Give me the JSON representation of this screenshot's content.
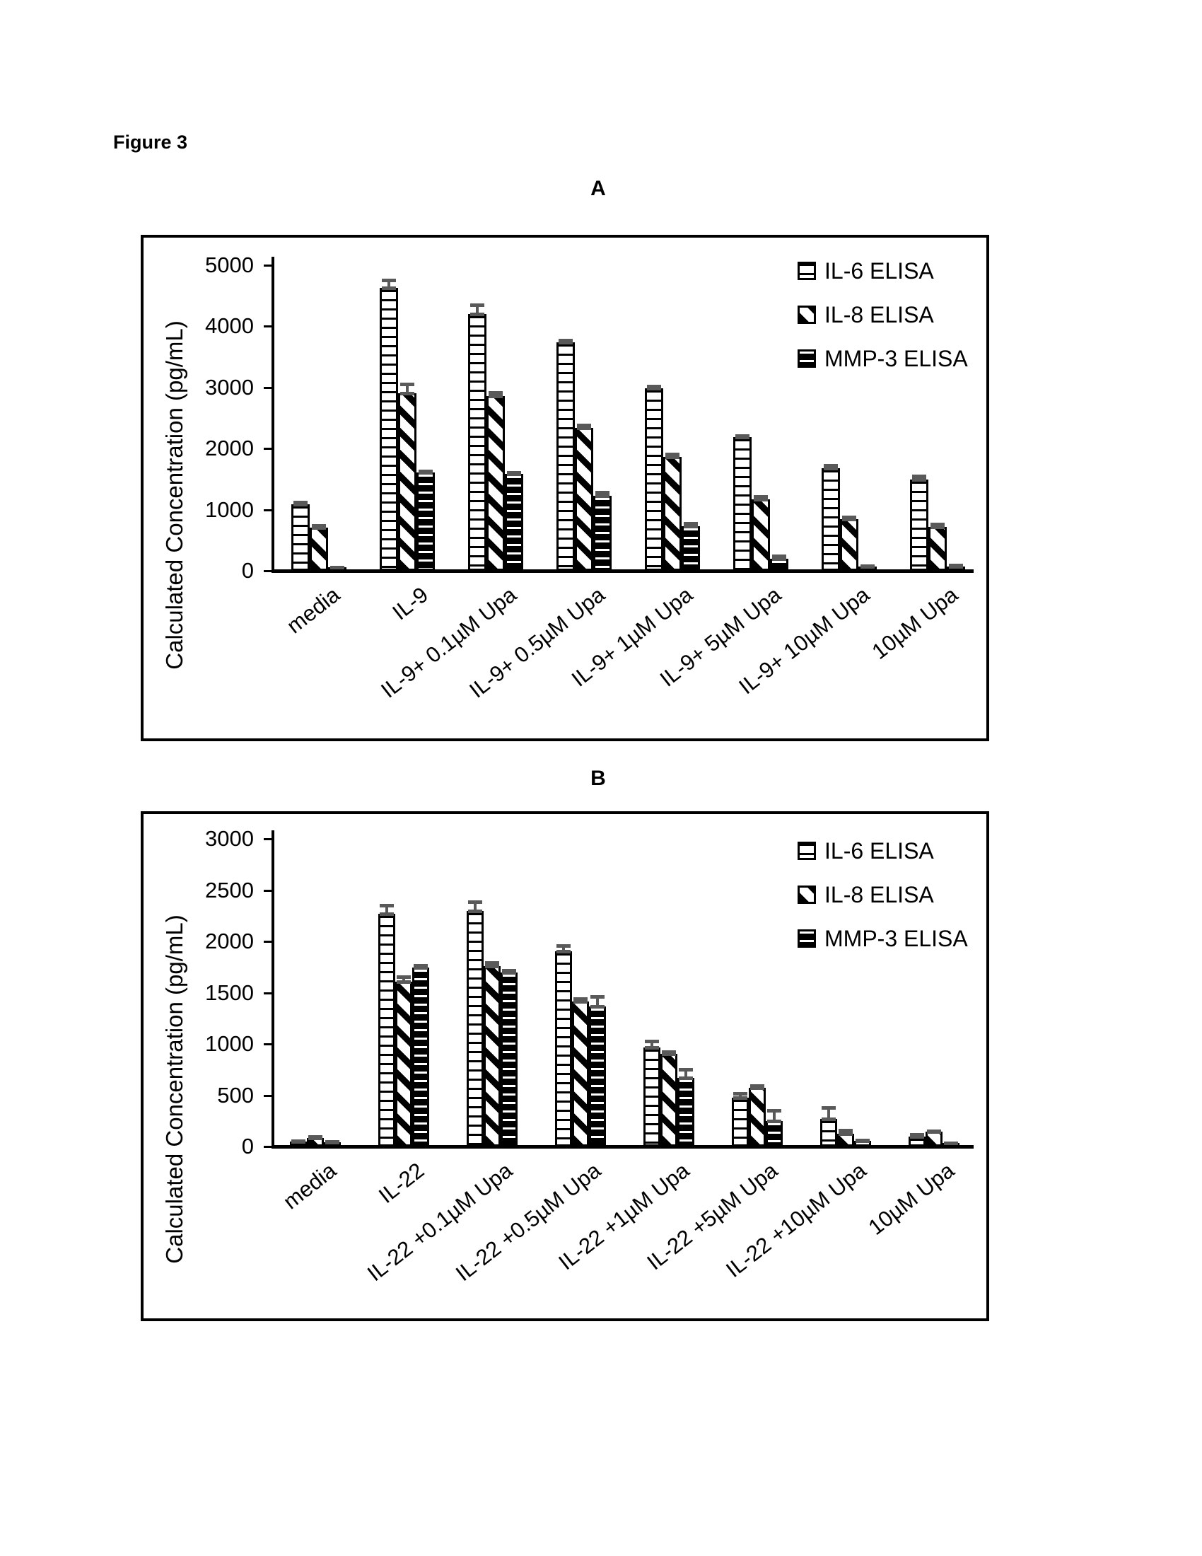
{
  "figure_label": "Figure 3",
  "panel_letters": [
    "A",
    "B"
  ],
  "legend": [
    {
      "label": "IL-6 ELISA",
      "pattern": "horizontal-black-stripes-on-white"
    },
    {
      "label": "IL-8 ELISA",
      "pattern": "diagonal-black-stripes"
    },
    {
      "label": "MMP-3 ELISA",
      "pattern": "horizontal-white-stripes-on-black"
    }
  ],
  "colors": {
    "bar_outline": "#000000",
    "error_bar": "#595959",
    "background": "#ffffff"
  },
  "chart_data": [
    {
      "type": "bar",
      "panel": "A",
      "ylabel": "Calculated Concentration (pg/mL)",
      "ylim": [
        0,
        5000
      ],
      "ytick_step": 1000,
      "ytick_labels": [
        "0",
        "1000",
        "2000",
        "3000",
        "4000",
        "5000"
      ],
      "grid": false,
      "legend_position": "top-right-inside",
      "legend_entries": [
        "IL-6 ELISA",
        "IL-8 ELISA",
        "MMP-3 ELISA"
      ],
      "categories": [
        "media",
        "IL-9",
        "IL-9+ 0.1µM Upa",
        "IL-9+ 0.5µM Upa",
        "IL-9+ 1µM Upa",
        "IL-9+ 5µM Upa",
        "IL-9+ 10µM Upa",
        "10µM Upa"
      ],
      "series": [
        {
          "name": "IL-6 ELISA",
          "values": [
            1080,
            4620,
            4190,
            3730,
            2980,
            2180,
            1670,
            1480
          ],
          "errors": [
            40,
            140,
            160,
            40,
            40,
            30,
            60,
            70
          ]
        },
        {
          "name": "IL-8 ELISA",
          "values": [
            700,
            2890,
            2850,
            2330,
            1850,
            1160,
            835,
            710
          ],
          "errors": [
            35,
            170,
            70,
            60,
            60,
            60,
            40,
            55
          ]
        },
        {
          "name": "MMP-3 ELISA",
          "values": [
            45,
            1595,
            1570,
            1220,
            715,
            180,
            60,
            60
          ],
          "errors": [
            15,
            40,
            35,
            60,
            60,
            60,
            25,
            30
          ]
        }
      ]
    },
    {
      "type": "bar",
      "panel": "B",
      "ylabel": "Calculated Concentration (pg/mL)",
      "ylim": [
        0,
        3000
      ],
      "ytick_step": 500,
      "ytick_labels": [
        "0",
        "500",
        "1000",
        "1500",
        "2000",
        "2500",
        "3000"
      ],
      "grid": false,
      "legend_position": "top-right-inside",
      "legend_entries": [
        "IL-6 ELISA",
        "IL-8 ELISA",
        "MMP-3 ELISA"
      ],
      "categories": [
        "media",
        "IL-22",
        "IL-22 +0.1µM Upa",
        "IL-22 +0.5µM Upa",
        "IL-22 +1µM Upa",
        "IL-22 +5µM Upa",
        "IL-22 +10µM Upa",
        "10µM Upa"
      ],
      "series": [
        {
          "name": "IL-6 ELISA",
          "values": [
            40,
            2260,
            2290,
            1900,
            960,
            470,
            265,
            90
          ],
          "errors": [
            15,
            90,
            95,
            60,
            70,
            50,
            115,
            30
          ]
        },
        {
          "name": "IL-8 ELISA",
          "values": [
            75,
            1600,
            1750,
            1410,
            900,
            565,
            120,
            135
          ],
          "errors": [
            25,
            55,
            40,
            30,
            25,
            25,
            40,
            15
          ]
        },
        {
          "name": "MMP-3 ELISA",
          "values": [
            35,
            1740,
            1690,
            1360,
            665,
            240,
            45,
            20
          ],
          "errors": [
            15,
            25,
            25,
            100,
            90,
            110,
            15,
            10
          ]
        }
      ]
    }
  ]
}
